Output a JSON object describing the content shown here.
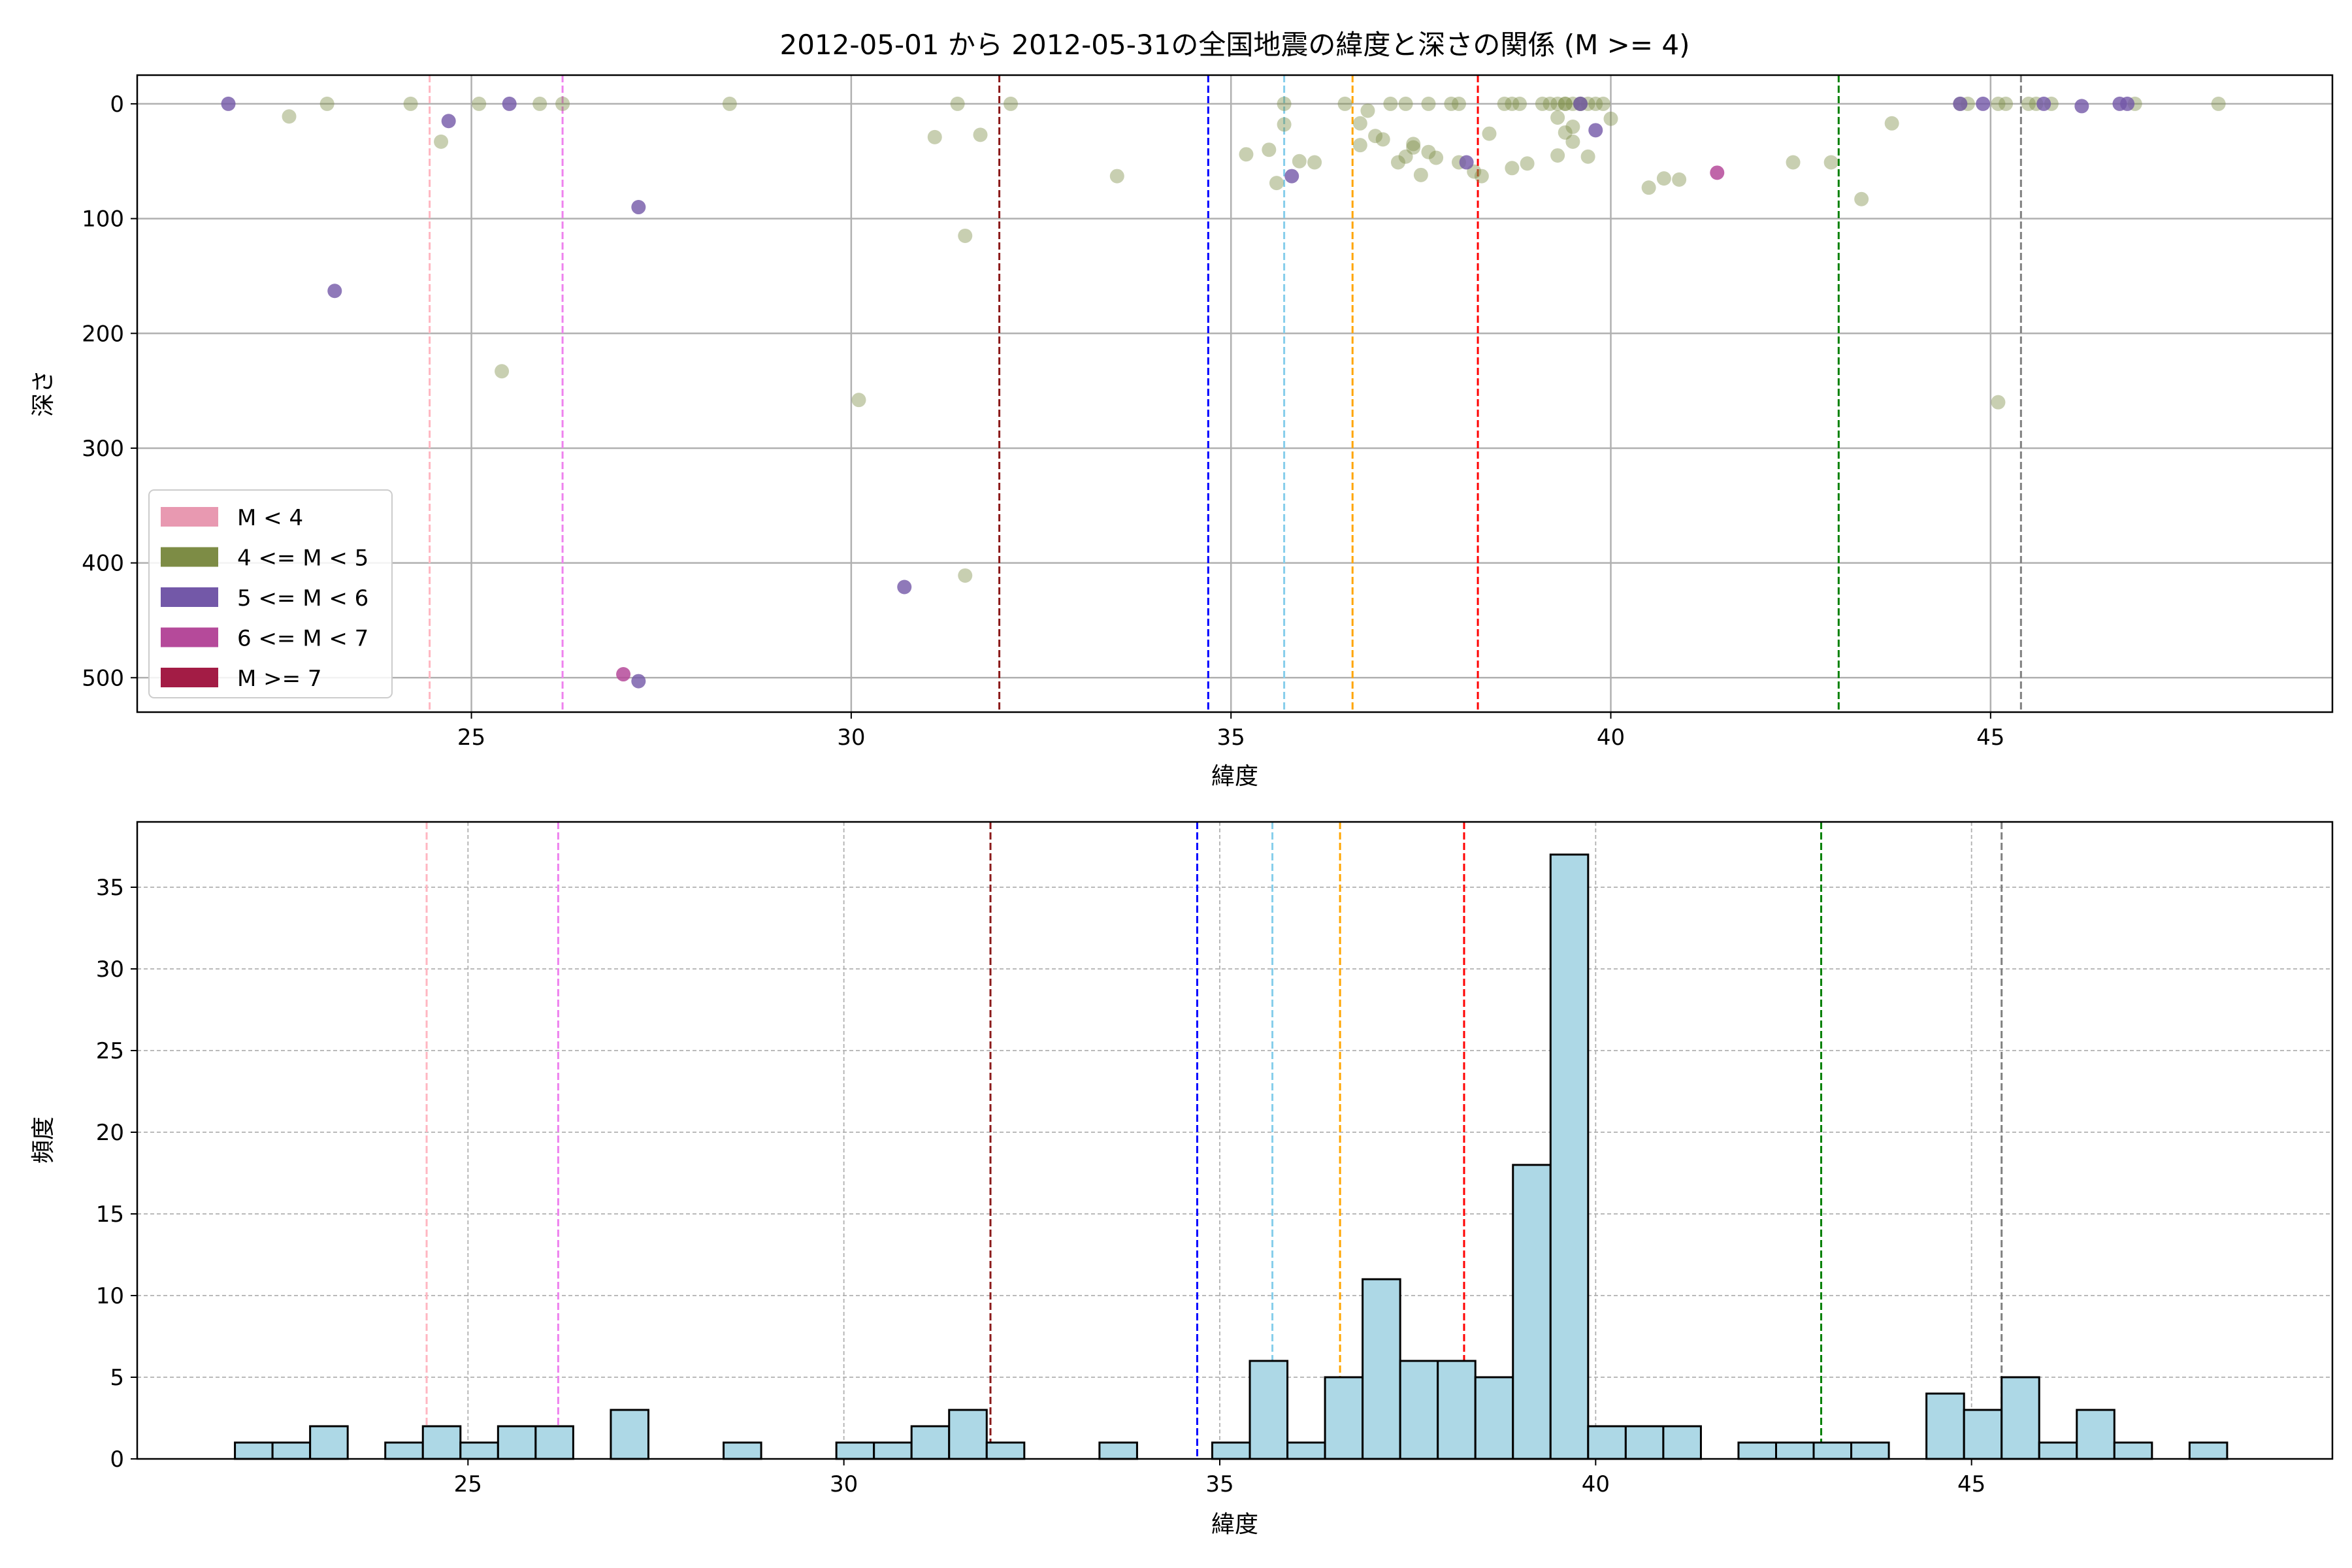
{
  "title": "2012-05-01 から 2012-05-31の全国地震の緯度と深さの関係 (M >= 4)",
  "colors": {
    "m_lt4": "#e899b1",
    "m_4_5": "#7d8c45",
    "m_5_6": "#7358a8",
    "m_6_7": "#b54a9a",
    "m_ge7": "#a31c45",
    "hist_fill": "#add8e6",
    "hist_edge": "#000000",
    "grid": "#b0b0b0"
  },
  "vlines": [
    {
      "x": 24.45,
      "color": "#ffb6c1"
    },
    {
      "x": 26.2,
      "color": "#ee82ee"
    },
    {
      "x": 31.95,
      "color": "#8b1a1a"
    },
    {
      "x": 34.7,
      "color": "#0000ff"
    },
    {
      "x": 35.7,
      "color": "#87ceeb"
    },
    {
      "x": 36.6,
      "color": "#ffa500"
    },
    {
      "x": 38.25,
      "color": "#ff0000"
    },
    {
      "x": 43.0,
      "color": "#008000"
    },
    {
      "x": 45.4,
      "color": "#808080"
    }
  ],
  "chart_data": [
    {
      "type": "scatter",
      "title": "2012-05-01 から 2012-05-31の全国地震の緯度と深さの関係 (M >= 4)",
      "xlabel": "緯度",
      "ylabel": "深さ",
      "xlim": [
        20.6,
        49.5
      ],
      "ylim": [
        530,
        -25
      ],
      "y_inverted": true,
      "xticks": [
        25,
        30,
        35,
        40,
        45
      ],
      "yticks": [
        0,
        100,
        200,
        300,
        400,
        500
      ],
      "grid": true,
      "legend_position": "lower-left",
      "legend": [
        "M < 4",
        "4 <= M < 5",
        "5 <= M < 6",
        "6 <= M < 7",
        "M >= 7"
      ],
      "series": [
        {
          "name": "4 <= M < 5",
          "points": [
            [
              22.6,
              11
            ],
            [
              23.1,
              0
            ],
            [
              24.2,
              0
            ],
            [
              24.6,
              33
            ],
            [
              25.1,
              0
            ],
            [
              25.4,
              233
            ],
            [
              25.9,
              0
            ],
            [
              26.2,
              0
            ],
            [
              28.4,
              0
            ],
            [
              30.1,
              258
            ],
            [
              31.1,
              29
            ],
            [
              31.4,
              0
            ],
            [
              31.5,
              115
            ],
            [
              31.5,
              411
            ],
            [
              31.7,
              27
            ],
            [
              32.1,
              0
            ],
            [
              33.5,
              63
            ],
            [
              35.2,
              44
            ],
            [
              35.5,
              40
            ],
            [
              35.6,
              69
            ],
            [
              35.7,
              18
            ],
            [
              35.9,
              50
            ],
            [
              35.7,
              0
            ],
            [
              36.1,
              51
            ],
            [
              36.5,
              0
            ],
            [
              36.7,
              17
            ],
            [
              36.7,
              36
            ],
            [
              36.8,
              6
            ],
            [
              36.9,
              28
            ],
            [
              37.0,
              31
            ],
            [
              37.1,
              0
            ],
            [
              37.2,
              51
            ],
            [
              37.3,
              0
            ],
            [
              37.3,
              46
            ],
            [
              37.4,
              38
            ],
            [
              37.4,
              35
            ],
            [
              37.5,
              62
            ],
            [
              37.6,
              0
            ],
            [
              37.6,
              42
            ],
            [
              37.7,
              47
            ],
            [
              37.9,
              0
            ],
            [
              38.0,
              51
            ],
            [
              38.0,
              0
            ],
            [
              38.2,
              59
            ],
            [
              38.3,
              63
            ],
            [
              38.4,
              26
            ],
            [
              38.6,
              0
            ],
            [
              38.7,
              0
            ],
            [
              38.7,
              56
            ],
            [
              38.8,
              0
            ],
            [
              38.9,
              52
            ],
            [
              39.1,
              0
            ],
            [
              39.2,
              0
            ],
            [
              39.3,
              0
            ],
            [
              39.3,
              12
            ],
            [
              39.3,
              45
            ],
            [
              39.4,
              0
            ],
            [
              39.4,
              0
            ],
            [
              39.4,
              25
            ],
            [
              39.5,
              0
            ],
            [
              39.5,
              33
            ],
            [
              39.5,
              20
            ],
            [
              39.6,
              0
            ],
            [
              39.6,
              0
            ],
            [
              39.7,
              0
            ],
            [
              39.7,
              46
            ],
            [
              39.8,
              0
            ],
            [
              39.9,
              0
            ],
            [
              40.0,
              13
            ],
            [
              40.5,
              73
            ],
            [
              40.7,
              65
            ],
            [
              40.9,
              66
            ],
            [
              42.4,
              51
            ],
            [
              42.9,
              51
            ],
            [
              43.3,
              83
            ],
            [
              43.7,
              17
            ],
            [
              44.6,
              0
            ],
            [
              44.7,
              0
            ],
            [
              45.1,
              0
            ],
            [
              45.2,
              0
            ],
            [
              45.1,
              260
            ],
            [
              45.5,
              0
            ],
            [
              45.6,
              0
            ],
            [
              45.8,
              0
            ],
            [
              46.9,
              0
            ],
            [
              48.0,
              0
            ]
          ]
        },
        {
          "name": "5 <= M < 6",
          "points": [
            [
              21.8,
              0
            ],
            [
              23.2,
              163
            ],
            [
              24.7,
              15
            ],
            [
              25.5,
              0
            ],
            [
              27.2,
              90
            ],
            [
              27.2,
              503
            ],
            [
              30.7,
              421
            ],
            [
              35.8,
              63
            ],
            [
              38.1,
              51
            ],
            [
              39.6,
              0
            ],
            [
              39.8,
              23
            ],
            [
              44.6,
              0
            ],
            [
              44.9,
              0
            ],
            [
              45.7,
              0
            ],
            [
              46.2,
              2
            ],
            [
              46.7,
              0
            ],
            [
              46.8,
              0
            ]
          ]
        },
        {
          "name": "6 <= M < 7",
          "points": [
            [
              27.0,
              497
            ],
            [
              41.4,
              60
            ]
          ]
        }
      ]
    },
    {
      "type": "bar",
      "title": "",
      "xlabel": "緯度",
      "ylabel": "頻度",
      "xlim": [
        20.6,
        49.8
      ],
      "ylim": [
        0,
        39
      ],
      "xticks": [
        25,
        30,
        35,
        40,
        45
      ],
      "yticks": [
        0,
        5,
        10,
        15,
        20,
        25,
        30,
        35
      ],
      "grid": true,
      "bin_width": 0.5,
      "bins": [
        [
          21.9,
          1
        ],
        [
          22.4,
          1
        ],
        [
          22.9,
          2
        ],
        [
          23.9,
          1
        ],
        [
          24.4,
          2
        ],
        [
          24.9,
          1
        ],
        [
          25.4,
          2
        ],
        [
          25.9,
          2
        ],
        [
          26.9,
          3
        ],
        [
          28.4,
          1
        ],
        [
          29.9,
          1
        ],
        [
          30.4,
          1
        ],
        [
          30.9,
          2
        ],
        [
          31.4,
          3
        ],
        [
          31.9,
          1
        ],
        [
          33.4,
          1
        ],
        [
          34.9,
          1
        ],
        [
          35.4,
          6
        ],
        [
          35.9,
          1
        ],
        [
          36.4,
          5
        ],
        [
          36.9,
          11
        ],
        [
          37.4,
          6
        ],
        [
          37.9,
          6
        ],
        [
          38.4,
          5
        ],
        [
          38.9,
          18
        ],
        [
          39.4,
          37
        ],
        [
          39.9,
          2
        ],
        [
          40.4,
          2
        ],
        [
          40.9,
          2
        ],
        [
          41.9,
          1
        ],
        [
          42.4,
          1
        ],
        [
          42.9,
          1
        ],
        [
          43.4,
          1
        ],
        [
          44.4,
          4
        ],
        [
          44.9,
          3
        ],
        [
          45.4,
          5
        ],
        [
          45.9,
          1
        ],
        [
          46.4,
          3
        ],
        [
          46.9,
          1
        ],
        [
          47.9,
          1
        ]
      ]
    }
  ]
}
